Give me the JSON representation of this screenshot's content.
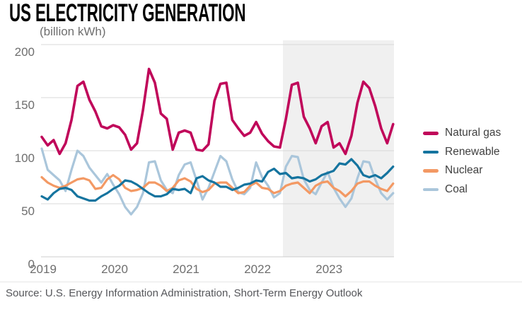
{
  "header": {
    "title": "US ELECTRICITY GENERATION",
    "subtitle": "(billion kWh)"
  },
  "footer": {
    "source": "Source: U.S. Energy Information Administration, Short-Term Energy Outlook"
  },
  "legend": [
    {
      "label": "Natural gas",
      "color": "#c0065a"
    },
    {
      "label": "Renewable",
      "color": "#15749f"
    },
    {
      "label": "Nuclear",
      "color": "#f39964"
    },
    {
      "label": "Coal",
      "color": "#aac6db"
    }
  ],
  "chart_data": {
    "type": "line",
    "title": "US ELECTRICITY GENERATION",
    "ylabel": "(billion kWh)",
    "unit": "billion kWh",
    "frequency": "monthly",
    "x_start": "2019-01",
    "x_end": "2023-12",
    "ylim": [
      0,
      200
    ],
    "grid": "horizontal",
    "legend_position": "right",
    "yticks": [
      0,
      50,
      100,
      150,
      200
    ],
    "xticks": [
      {
        "label": "2019",
        "month_index": 0
      },
      {
        "label": "2020",
        "month_index": 12
      },
      {
        "label": "2021",
        "month_index": 24
      },
      {
        "label": "2022",
        "month_index": 36
      },
      {
        "label": "2023",
        "month_index": 48
      }
    ],
    "forecast_region": {
      "start_month": "2022-06",
      "start_month_index": 41,
      "color": "#f0f0f0",
      "meaning": "shaded area = Short-Term Energy Outlook forecast period"
    },
    "series": [
      {
        "name": "Natural gas",
        "color": "#c0065a",
        "values": [
          113,
          105,
          110,
          97,
          107,
          129,
          161,
          165,
          148,
          137,
          123,
          121,
          124,
          122,
          115,
          101,
          107,
          138,
          177,
          164,
          135,
          130,
          101,
          117,
          119,
          117,
          101,
          100,
          106,
          147,
          163,
          164,
          129,
          121,
          114,
          117,
          127,
          116,
          109,
          104,
          103,
          130,
          162,
          164,
          132,
          121,
          107,
          123,
          127,
          103,
          107,
          97,
          114,
          145,
          165,
          159,
          142,
          121,
          107,
          125
        ]
      },
      {
        "name": "Renewable",
        "color": "#15749f",
        "values": [
          57,
          54,
          60,
          64,
          65,
          63,
          57,
          55,
          53,
          53,
          57,
          60,
          64,
          67,
          72,
          71,
          68,
          64,
          60,
          57,
          57,
          59,
          64,
          63,
          64,
          60,
          74,
          76,
          72,
          70,
          66,
          66,
          63,
          65,
          68,
          69,
          72,
          71,
          80,
          83,
          78,
          79,
          74,
          75,
          74,
          71,
          73,
          77,
          79,
          81,
          88,
          87,
          92,
          86,
          77,
          75,
          77,
          74,
          79,
          85
        ]
      },
      {
        "name": "Nuclear",
        "color": "#f39964",
        "values": [
          75,
          70,
          67,
          65,
          67,
          70,
          73,
          74,
          72,
          64,
          65,
          73,
          77,
          73,
          65,
          62,
          63,
          65,
          70,
          70,
          67,
          62,
          65,
          72,
          74,
          71,
          64,
          61,
          63,
          69,
          70,
          70,
          65,
          60,
          61,
          67,
          70,
          65,
          64,
          60,
          62,
          67,
          69,
          70,
          65,
          60,
          67,
          70,
          71,
          65,
          62,
          57,
          62,
          69,
          71,
          71,
          67,
          64,
          62,
          69
        ]
      },
      {
        "name": "Coal",
        "color": "#aac6db",
        "values": [
          102,
          82,
          77,
          72,
          62,
          82,
          100,
          95,
          84,
          77,
          70,
          78,
          68,
          59,
          47,
          40,
          47,
          60,
          89,
          90,
          72,
          63,
          60,
          77,
          87,
          89,
          72,
          54,
          65,
          80,
          95,
          90,
          73,
          61,
          59,
          65,
          89,
          75,
          67,
          56,
          60,
          85,
          95,
          94,
          73,
          63,
          59,
          70,
          80,
          65,
          55,
          47,
          55,
          74,
          90,
          89,
          73,
          60,
          54,
          60
        ]
      }
    ]
  }
}
